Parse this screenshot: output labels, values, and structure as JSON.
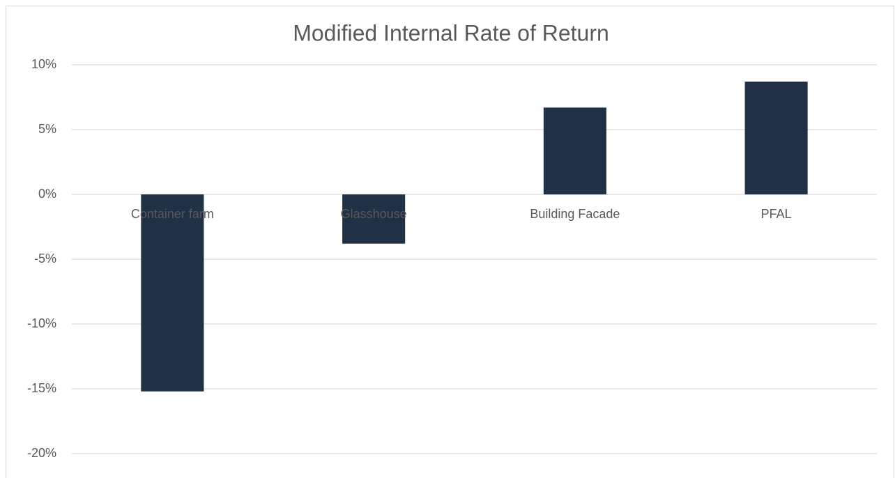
{
  "chart_data": {
    "type": "bar",
    "title": "Modified Internal Rate of Return",
    "categories": [
      "Container farm",
      "Glasshouse",
      "Building Facade",
      "PFAL"
    ],
    "values": [
      -15.2,
      -3.8,
      6.7,
      8.7
    ],
    "color": "#203045",
    "ylim": [
      -20,
      10
    ],
    "yticks": [
      {
        "value": -20,
        "label": "-20%"
      },
      {
        "value": -15,
        "label": "-15%"
      },
      {
        "value": -10,
        "label": "-10%"
      },
      {
        "value": -5,
        "label": "-5%"
      },
      {
        "value": 0,
        "label": "0%"
      },
      {
        "value": 5,
        "label": "5%"
      },
      {
        "value": 10,
        "label": "10%"
      }
    ],
    "grid": true
  }
}
